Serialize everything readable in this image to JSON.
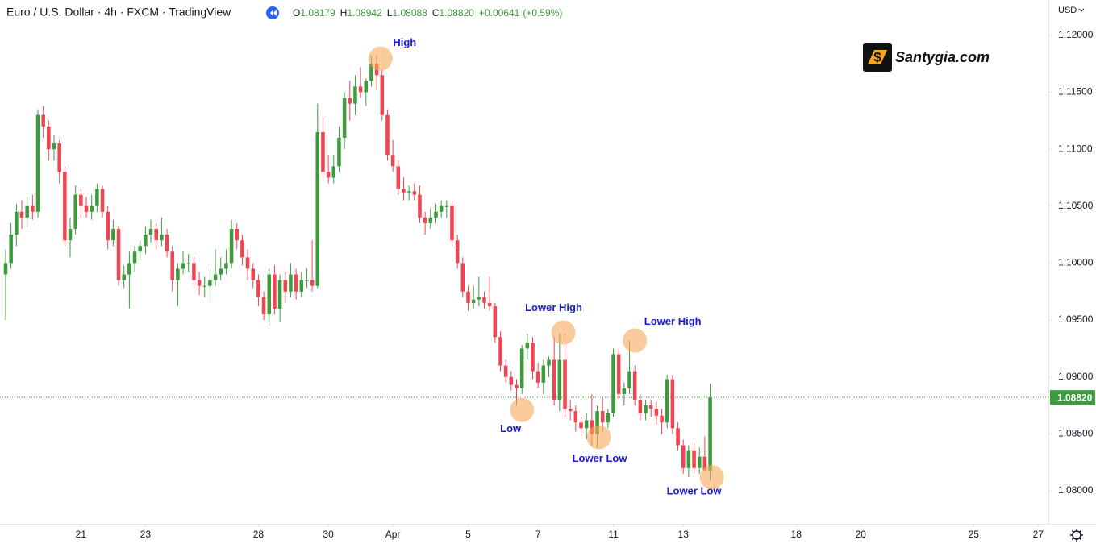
{
  "chart_data": {
    "type": "candlestick",
    "title": "Euro / U.S. Dollar · 4h · FXCM · TradingView",
    "ohlc_legend": [
      {
        "label": "O",
        "value": "1.08179"
      },
      {
        "label": "H",
        "value": "1.08942"
      },
      {
        "label": "L",
        "value": "1.08088"
      },
      {
        "label": "C",
        "value": "1.08820"
      }
    ],
    "change": "+0.00641",
    "change_percent": "(+0.59%)",
    "currency": "USD",
    "logo": "Santygia.com",
    "up_color": "#3d9a3d",
    "down_color": "#ef4452",
    "xlim": [
      -1.05,
      193.9
    ],
    "xticks": [
      {
        "value": 14,
        "label": "21"
      },
      {
        "value": 26,
        "label": "23"
      },
      {
        "value": 47,
        "label": "28"
      },
      {
        "value": 60,
        "label": "30"
      },
      {
        "value": 72,
        "label": "Apr"
      },
      {
        "value": 86,
        "label": "5"
      },
      {
        "value": 99,
        "label": "7"
      },
      {
        "value": 113,
        "label": "11"
      },
      {
        "value": 126,
        "label": "13"
      },
      {
        "value": 147,
        "label": "18"
      },
      {
        "value": 159,
        "label": "20"
      },
      {
        "value": 180,
        "label": "25"
      },
      {
        "value": 192,
        "label": "27"
      }
    ],
    "ylim": [
      1.0771,
      1.1231
    ],
    "yticks": [
      {
        "value": 1.08,
        "label": "1.08000"
      },
      {
        "value": 1.085,
        "label": "1.08500"
      },
      {
        "value": 1.09,
        "label": "1.09000"
      },
      {
        "value": 1.095,
        "label": "1.09500"
      },
      {
        "value": 1.1,
        "label": "1.10000"
      },
      {
        "value": 1.105,
        "label": "1.10500"
      },
      {
        "value": 1.11,
        "label": "1.11000"
      },
      {
        "value": 1.115,
        "label": "1.11500"
      },
      {
        "value": 1.12,
        "label": "1.12000"
      }
    ],
    "last_price": {
      "value": 1.0882,
      "label": "1.08820"
    },
    "ohlc": [
      [
        1.099,
        1.1012,
        1.095,
        1.1
      ],
      [
        1.1,
        1.1035,
        1.0995,
        1.1025
      ],
      [
        1.1025,
        1.1052,
        1.1015,
        1.1045
      ],
      [
        1.1045,
        1.1055,
        1.103,
        1.104
      ],
      [
        1.104,
        1.1058,
        1.1032,
        1.105
      ],
      [
        1.105,
        1.106,
        1.1038,
        1.1045
      ],
      [
        1.1045,
        1.1135,
        1.104,
        1.113
      ],
      [
        1.113,
        1.1138,
        1.111,
        1.112
      ],
      [
        1.112,
        1.1125,
        1.109,
        1.11
      ],
      [
        1.11,
        1.1112,
        1.109,
        1.1105
      ],
      [
        1.1105,
        1.1108,
        1.107,
        1.108
      ],
      [
        1.108,
        1.1085,
        1.1015,
        1.102
      ],
      [
        1.102,
        1.104,
        1.1005,
        1.103
      ],
      [
        1.103,
        1.1068,
        1.1025,
        1.106
      ],
      [
        1.106,
        1.1065,
        1.104,
        1.105
      ],
      [
        1.105,
        1.1058,
        1.104,
        1.1045
      ],
      [
        1.1045,
        1.106,
        1.1038,
        1.105
      ],
      [
        1.105,
        1.107,
        1.1045,
        1.1065
      ],
      [
        1.1065,
        1.1068,
        1.104,
        1.1045
      ],
      [
        1.1045,
        1.105,
        1.1012,
        1.102
      ],
      [
        1.102,
        1.1038,
        1.1015,
        1.103
      ],
      [
        1.103,
        1.1032,
        1.098,
        1.0985
      ],
      [
        1.0985,
        1.0998,
        1.0978,
        1.099
      ],
      [
        1.099,
        1.101,
        1.096,
        1.1
      ],
      [
        1.1,
        1.1015,
        1.0992,
        1.101
      ],
      [
        1.101,
        1.102,
        1.1002,
        1.1015
      ],
      [
        1.1015,
        1.1032,
        1.1008,
        1.1025
      ],
      [
        1.1025,
        1.1038,
        1.1018,
        1.103
      ],
      [
        1.103,
        1.1035,
        1.1012,
        1.102
      ],
      [
        1.102,
        1.104,
        1.1015,
        1.1025
      ],
      [
        1.1025,
        1.103,
        1.1005,
        1.101
      ],
      [
        1.101,
        1.1015,
        1.0975,
        1.0985
      ],
      [
        1.0985,
        1.1,
        1.0962,
        1.0995
      ],
      [
        1.0995,
        1.101,
        1.099,
        1.1
      ],
      [
        1.1,
        1.1008,
        1.0992,
        1.1
      ],
      [
        1.1,
        1.1005,
        1.0978,
        1.0985
      ],
      [
        1.0985,
        1.0992,
        1.0972,
        1.098
      ],
      [
        1.098,
        1.0988,
        1.097,
        1.098
      ],
      [
        1.098,
        1.0995,
        1.0965,
        1.0985
      ],
      [
        1.0985,
        1.1012,
        1.098,
        1.099
      ],
      [
        1.099,
        1.1005,
        1.0985,
        1.0995
      ],
      [
        1.0995,
        1.1012,
        1.099,
        1.1
      ],
      [
        1.1,
        1.1038,
        1.0995,
        1.103
      ],
      [
        1.103,
        1.1035,
        1.1012,
        1.102
      ],
      [
        1.102,
        1.1025,
        1.0998,
        1.1005
      ],
      [
        1.1005,
        1.1012,
        1.0985,
        1.0995
      ],
      [
        1.0995,
        1.1,
        1.0978,
        1.0985
      ],
      [
        1.0985,
        1.099,
        1.0962,
        1.097
      ],
      [
        1.097,
        1.0975,
        1.095,
        1.0955
      ],
      [
        1.0955,
        1.0995,
        1.0945,
        1.099
      ],
      [
        1.099,
        1.0998,
        1.0955,
        1.096
      ],
      [
        1.096,
        1.099,
        1.0948,
        1.0985
      ],
      [
        1.0985,
        1.0992,
        1.0965,
        1.0975
      ],
      [
        1.0975,
        1.1,
        1.097,
        1.099
      ],
      [
        1.099,
        1.0995,
        1.0968,
        1.0975
      ],
      [
        1.0975,
        1.0992,
        1.097,
        1.0985
      ],
      [
        1.0985,
        1.0995,
        1.0978,
        1.0985
      ],
      [
        1.0985,
        1.102,
        1.0975,
        1.098
      ],
      [
        1.098,
        1.114,
        1.0978,
        1.1115
      ],
      [
        1.1115,
        1.1128,
        1.1075,
        1.108
      ],
      [
        1.108,
        1.1095,
        1.107,
        1.1075
      ],
      [
        1.1075,
        1.1095,
        1.107,
        1.1085
      ],
      [
        1.1085,
        1.112,
        1.108,
        1.111
      ],
      [
        1.111,
        1.115,
        1.11,
        1.1145
      ],
      [
        1.1145,
        1.116,
        1.1125,
        1.114
      ],
      [
        1.114,
        1.1165,
        1.113,
        1.1155
      ],
      [
        1.1155,
        1.1172,
        1.1145,
        1.115
      ],
      [
        1.115,
        1.1162,
        1.1138,
        1.116
      ],
      [
        1.116,
        1.1182,
        1.1155,
        1.1175
      ],
      [
        1.1175,
        1.1182,
        1.1152,
        1.1165
      ],
      [
        1.1165,
        1.117,
        1.1125,
        1.113
      ],
      [
        1.113,
        1.1135,
        1.109,
        1.1095
      ],
      [
        1.1095,
        1.1108,
        1.108,
        1.1085
      ],
      [
        1.1085,
        1.109,
        1.106,
        1.1065
      ],
      [
        1.1065,
        1.1075,
        1.1055,
        1.1062
      ],
      [
        1.1062,
        1.1068,
        1.1055,
        1.1063
      ],
      [
        1.1063,
        1.107,
        1.1055,
        1.106
      ],
      [
        1.106,
        1.1068,
        1.1035,
        1.104
      ],
      [
        1.104,
        1.1045,
        1.1025,
        1.1035
      ],
      [
        1.1035,
        1.1048,
        1.103,
        1.104
      ],
      [
        1.104,
        1.1052,
        1.1035,
        1.1045
      ],
      [
        1.1045,
        1.1055,
        1.104,
        1.105
      ],
      [
        1.105,
        1.1055,
        1.104,
        1.105
      ],
      [
        1.105,
        1.1055,
        1.1015,
        1.102
      ],
      [
        1.102,
        1.1025,
        1.0995,
        1.1
      ],
      [
        1.1,
        1.1005,
        1.097,
        1.0975
      ],
      [
        1.0975,
        1.098,
        1.0958,
        1.0965
      ],
      [
        1.0965,
        1.098,
        1.096,
        1.0968
      ],
      [
        1.0968,
        1.0988,
        1.0962,
        1.097
      ],
      [
        1.097,
        1.0975,
        1.096,
        1.0965
      ],
      [
        1.0965,
        1.0988,
        1.0958,
        1.0962
      ],
      [
        1.0962,
        1.0965,
        1.093,
        1.0935
      ],
      [
        1.0935,
        1.094,
        1.0905,
        1.091
      ],
      [
        1.091,
        1.0915,
        1.0895,
        1.09
      ],
      [
        1.09,
        1.0905,
        1.0888,
        1.0893
      ],
      [
        1.0893,
        1.0898,
        1.0875,
        1.089
      ],
      [
        1.089,
        1.0928,
        1.0885,
        1.0925
      ],
      [
        1.0925,
        1.0938,
        1.0915,
        1.093
      ],
      [
        1.093,
        1.0935,
        1.0898,
        1.0905
      ],
      [
        1.0905,
        1.0912,
        1.089,
        1.0895
      ],
      [
        1.0895,
        1.0915,
        1.0885,
        1.091
      ],
      [
        1.091,
        1.0918,
        1.09,
        1.0915
      ],
      [
        1.0915,
        1.0935,
        1.0875,
        1.088
      ],
      [
        1.088,
        1.0938,
        1.087,
        1.0915
      ],
      [
        1.0915,
        1.0938,
        1.0865,
        1.0872
      ],
      [
        1.0872,
        1.088,
        1.0862,
        1.087
      ],
      [
        1.087,
        1.0875,
        1.0852,
        1.086
      ],
      [
        1.086,
        1.0865,
        1.0848,
        1.0855
      ],
      [
        1.0855,
        1.0868,
        1.0845,
        1.0862
      ],
      [
        1.0862,
        1.0885,
        1.084,
        1.085
      ],
      [
        1.085,
        1.0875,
        1.0838,
        1.087
      ],
      [
        1.087,
        1.0882,
        1.0852,
        1.086
      ],
      [
        1.086,
        1.0872,
        1.0855,
        1.0868
      ],
      [
        1.0868,
        1.0925,
        1.0865,
        1.092
      ],
      [
        1.092,
        1.0925,
        1.088,
        1.0885
      ],
      [
        1.0885,
        1.0895,
        1.0875,
        1.089
      ],
      [
        1.089,
        1.0932,
        1.0885,
        1.0905
      ],
      [
        1.0905,
        1.091,
        1.0875,
        1.088
      ],
      [
        1.088,
        1.0885,
        1.0862,
        1.0868
      ],
      [
        1.0868,
        1.088,
        1.0862,
        1.0875
      ],
      [
        1.0875,
        1.088,
        1.0865,
        1.0872
      ],
      [
        1.0872,
        1.0878,
        1.0858,
        1.0866
      ],
      [
        1.0866,
        1.0872,
        1.085,
        1.086
      ],
      [
        1.086,
        1.0902,
        1.0855,
        1.0898
      ],
      [
        1.0898,
        1.0902,
        1.085,
        1.0855
      ],
      [
        1.0855,
        1.086,
        1.0835,
        1.084
      ],
      [
        1.084,
        1.0845,
        1.0815,
        1.082
      ],
      [
        1.082,
        1.084,
        1.0812,
        1.0835
      ],
      [
        1.0835,
        1.0842,
        1.0815,
        1.082
      ],
      [
        1.082,
        1.0838,
        1.0815,
        1.083
      ],
      [
        1.083,
        1.0848,
        1.0818,
        1.0818
      ],
      [
        1.08179,
        1.08942,
        1.08088,
        1.0882
      ]
    ],
    "annotations": [
      {
        "text": "High",
        "x": 69.7,
        "y": 1.11795
      },
      {
        "text": "Lower High",
        "x": 103.7,
        "y": 1.0939
      },
      {
        "text": "Low",
        "x": 96,
        "y": 1.0871
      },
      {
        "text": "Lower Low",
        "x": 110.3,
        "y": 1.0847
      },
      {
        "text": "Lower High",
        "x": 117,
        "y": 1.0932
      },
      {
        "text": "Lower Low",
        "x": 131.3,
        "y": 1.0812
      }
    ]
  }
}
